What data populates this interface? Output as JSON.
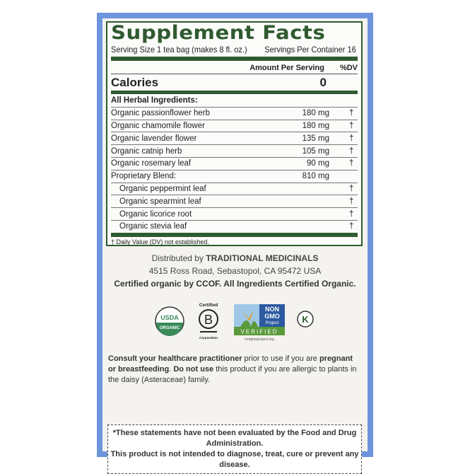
{
  "facts": {
    "title": "Supplement Facts",
    "serving_size": "Serving Size 1 tea bag (makes 8 fl. oz.)",
    "servings": "Servings Per Container 16",
    "amount_header": "Amount Per Serving",
    "dv_header": "%DV",
    "calories_label": "Calories",
    "calories_value": "0",
    "section": "All Herbal Ingredients:",
    "rows": [
      {
        "name": "Organic passionflower herb",
        "amount": "180 mg",
        "dv": "†"
      },
      {
        "name": "Organic chamomile flower",
        "amount": "180 mg",
        "dv": "†"
      },
      {
        "name": "Organic lavender flower",
        "amount": "135 mg",
        "dv": "†"
      },
      {
        "name": "Organic catnip herb",
        "amount": "105 mg",
        "dv": "†"
      },
      {
        "name": "Organic rosemary leaf",
        "amount": "90 mg",
        "dv": "†"
      },
      {
        "name": "Proprietary Blend:",
        "amount": "810 mg",
        "dv": ""
      }
    ],
    "blend": [
      {
        "name": "Organic peppermint leaf",
        "dv": "†"
      },
      {
        "name": "Organic spearmint leaf",
        "dv": "†"
      },
      {
        "name": "Organic licorice root",
        "dv": "†"
      },
      {
        "name": "Organic stevia leaf",
        "dv": "†"
      }
    ],
    "footnote": "† Daily Value (DV) not established."
  },
  "distributor": {
    "prefix": "Distributed by ",
    "name": "TRADITIONAL MEDICINALS",
    "address": "4515 Ross Road, Sebastopol, CA 95472 USA",
    "certified": "Certified organic by CCOF. All Ingredients Certified Organic."
  },
  "logos": {
    "usda_top": "USDA",
    "usda_bottom": "ORGANIC",
    "bcorp_top": "Certified",
    "bcorp_letter": "B",
    "bcorp_bottom": "Corporation",
    "nongmo_1": "NON",
    "nongmo_2": "GMO",
    "nongmo_3": "Project",
    "nongmo_verified": "VERIFIED",
    "nongmo_url": "nongmoproject.org",
    "kosher": "K"
  },
  "warning": {
    "p1": "Consult your healthcare practitioner",
    "p2": " prior to use if you are ",
    "p3": "pregnant or breastfeeding",
    "p4": ". ",
    "p5": "Do not use",
    "p6": " this product if you are allergic to plants in the daisy (Asteraceae) family."
  },
  "disclaimer": {
    "line1": "*These statements have not been evaluated by the Food and Drug Administration.",
    "line2": "This product is not intended to diagnose, treat, cure or prevent any disease."
  },
  "colors": {
    "border": "#6d95dc",
    "green": "#2f5a2f"
  }
}
